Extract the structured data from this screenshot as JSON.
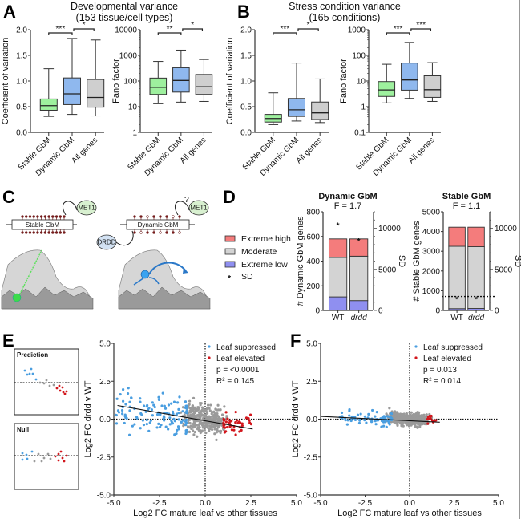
{
  "panels": {
    "A": {
      "letter": "A",
      "title_line1": "Developmental variance",
      "title_line2": "(153 tissue/cell types)"
    },
    "B": {
      "letter": "B",
      "title_line1": "Stress condition variance",
      "title_line2": "(165 conditions)"
    },
    "C": {
      "letter": "C",
      "stable_label": "Stable GbM",
      "dynamic_label": "Dynamic GbM",
      "met1_label": "MET1",
      "drdd_label": "DRDD",
      "question": "?"
    },
    "D": {
      "letter": "D"
    },
    "E": {
      "letter": "E",
      "prediction_label": "Prediction",
      "null_label": "Null"
    },
    "F": {
      "letter": "F"
    }
  },
  "colors": {
    "stable": "#9ef09e",
    "dynamic": "#8fb8ee",
    "all": "#cfcfcf",
    "extreme_high": "#f47c7c",
    "moderate": "#d3d3d3",
    "extreme_low": "#8f8ff0",
    "suppressed": "#4a9ee0",
    "elevated": "#d2161c",
    "other": "#9a9a9a"
  },
  "chart_data": [
    {
      "id": "A-cv",
      "type": "box",
      "ylabel": "Coefficient of variation",
      "yscale": "linear",
      "ylim": [
        0,
        2.0
      ],
      "yticks": [
        "0.0",
        "0.5",
        "1.0",
        "1.5",
        "2.0"
      ],
      "ytick_values": [
        0,
        0.5,
        1.0,
        1.5,
        2.0
      ],
      "categories": [
        "Stable GbM",
        "Dynamic GbM",
        "All genes"
      ],
      "boxes": [
        {
          "min": 0.31,
          "q1": 0.43,
          "median": 0.52,
          "q3": 0.65,
          "max": 1.24
        },
        {
          "min": 0.35,
          "q1": 0.54,
          "median": 0.75,
          "q3": 1.06,
          "max": 1.83
        },
        {
          "min": 0.32,
          "q1": 0.49,
          "median": 0.68,
          "q3": 1.03,
          "max": 1.8
        }
      ],
      "significance": [
        {
          "from": 0,
          "to": 1,
          "label": "***"
        },
        {
          "from": 1,
          "to": 2,
          "label": "*"
        }
      ]
    },
    {
      "id": "A-fano",
      "type": "box",
      "ylabel": "Fano factor",
      "yscale": "log",
      "ylim": [
        1,
        10000
      ],
      "yticks": [
        "1",
        "10",
        "100",
        "1000",
        "10000"
      ],
      "ytick_values": [
        1,
        10,
        100,
        1000,
        10000
      ],
      "categories": [
        "Stable GbM",
        "Dynamic GbM",
        "All genes"
      ],
      "boxes": [
        {
          "min": 13,
          "q1": 30,
          "median": 57,
          "q3": 130,
          "max": 580
        },
        {
          "min": 15,
          "q1": 37,
          "median": 105,
          "q3": 330,
          "max": 1600
        },
        {
          "min": 16,
          "q1": 30,
          "median": 60,
          "q3": 180,
          "max": 690
        }
      ],
      "significance": [
        {
          "from": 0,
          "to": 1,
          "label": "**"
        },
        {
          "from": 1,
          "to": 2,
          "label": "*"
        }
      ]
    },
    {
      "id": "B-cv",
      "type": "box",
      "ylabel": "Coefficient of variation",
      "yscale": "linear",
      "ylim": [
        0,
        2.0
      ],
      "yticks": [
        "0.0",
        "0.5",
        "1.0",
        "1.5",
        "2.0"
      ],
      "ytick_values": [
        0,
        0.5,
        1.0,
        1.5,
        2.0
      ],
      "categories": [
        "Stable GbM",
        "Dynamic GbM",
        "All genes"
      ],
      "boxes": [
        {
          "min": 0.15,
          "q1": 0.2,
          "median": 0.27,
          "q3": 0.35,
          "max": 0.77
        },
        {
          "min": 0.22,
          "q1": 0.31,
          "median": 0.44,
          "q3": 0.66,
          "max": 1.35
        },
        {
          "min": 0.19,
          "q1": 0.25,
          "median": 0.38,
          "q3": 0.59,
          "max": 1.04
        }
      ],
      "significance": [
        {
          "from": 0,
          "to": 1,
          "label": "***"
        },
        {
          "from": 1,
          "to": 2,
          "label": "*"
        }
      ]
    },
    {
      "id": "B-fano",
      "type": "box",
      "ylabel": "Fano factor",
      "yscale": "log",
      "ylim": [
        0.1,
        1000
      ],
      "yticks": [
        "0.1",
        "1",
        "10",
        "100",
        "1000"
      ],
      "ytick_values": [
        0.1,
        1,
        10,
        100,
        1000
      ],
      "categories": [
        "Stable GbM",
        "Dynamic GbM",
        "All genes"
      ],
      "boxes": [
        {
          "min": 1.4,
          "q1": 2.5,
          "median": 4.5,
          "q3": 9.5,
          "max": 45
        },
        {
          "min": 2.1,
          "q1": 4.4,
          "median": 11,
          "q3": 50,
          "max": 320
        },
        {
          "min": 1.6,
          "q1": 2.3,
          "median": 4.6,
          "q3": 16,
          "max": 52
        }
      ],
      "significance": [
        {
          "from": 0,
          "to": 1,
          "label": "***"
        },
        {
          "from": 1,
          "to": 2,
          "label": "***"
        }
      ]
    },
    {
      "id": "D-dynamic",
      "type": "stacked-bar",
      "title": "Dynamic GbM",
      "subtitle": "F = 1.7",
      "ylabel": "# Dynamic GbM genes",
      "y2label": "SD",
      "ylim": [
        0,
        800
      ],
      "yticks": [
        "0",
        "200",
        "400",
        "600",
        "800"
      ],
      "ytick_values": [
        0,
        200,
        400,
        600,
        800
      ],
      "y2lim": [
        0,
        12000
      ],
      "y2ticks": [
        "0",
        "5000",
        "10000"
      ],
      "y2tick_values": [
        0,
        5000,
        10000
      ],
      "categories": [
        "WT",
        "drdd"
      ],
      "series": [
        {
          "name": "Extreme low",
          "values": [
            110,
            80
          ]
        },
        {
          "name": "Moderate",
          "values": [
            320,
            360
          ]
        },
        {
          "name": "Extreme high",
          "values": [
            150,
            140
          ]
        }
      ],
      "sd": [
        10700,
        8800
      ]
    },
    {
      "id": "D-stable",
      "type": "stacked-bar",
      "title": "Stable GbM",
      "subtitle": "F = 1.1",
      "ylabel": "# Stable GbM genes",
      "y2label": "SD",
      "ylim": [
        0,
        5000
      ],
      "yticks": [
        "0",
        "1000",
        "2000",
        "3000",
        "4000",
        "5000"
      ],
      "ytick_values": [
        0,
        1000,
        2000,
        3000,
        4000,
        5000
      ],
      "y2lim": [
        0,
        12000
      ],
      "y2ticks": [
        "0",
        "5000",
        "10000"
      ],
      "y2tick_values": [
        0,
        5000,
        10000
      ],
      "categories": [
        "WT",
        "drdd"
      ],
      "series": [
        {
          "name": "Extreme low",
          "values": [
            90,
            100
          ]
        },
        {
          "name": "Moderate",
          "values": [
            3160,
            3130
          ]
        },
        {
          "name": "Extreme high",
          "values": [
            970,
            990
          ]
        }
      ],
      "sd": [
        1700,
        1700
      ]
    },
    {
      "id": "E-scatter",
      "type": "scatter",
      "xlabel": "Log2 FC mature leaf vs other tissues",
      "ylabel": "Log2  FC drdd v WT",
      "xlim": [
        -5,
        5
      ],
      "ylim": [
        -5,
        5
      ],
      "xticks": [
        "-5.0",
        "-2.5",
        "0.0",
        "2.5",
        "5.0"
      ],
      "xtick_values": [
        -5,
        -2.5,
        0,
        2.5,
        5
      ],
      "yticks": [
        "-5.0",
        "-2.5",
        "0.0",
        "2.5",
        "5.0"
      ],
      "ytick_values": [
        -5,
        -2.5,
        0,
        2.5,
        5
      ],
      "legend": [
        {
          "name": "Leaf suppressed",
          "color_key": "suppressed"
        },
        {
          "name": "Leaf elevated",
          "color_key": "elevated"
        }
      ],
      "stats": {
        "p": "p = <0.0001",
        "r2_prefix": "R",
        "r2_value": " = 0.145"
      },
      "fit": {
        "x": [
          -4.8,
          2.6
        ],
        "y": [
          0.9,
          -0.65
        ]
      },
      "seed": 11,
      "n_suppressed": 130,
      "n_elevated": 45,
      "n_other": 330
    },
    {
      "id": "F-scatter",
      "type": "scatter",
      "xlabel": "Log2 FC mature leaf vs other tissues",
      "ylabel": "Log2  FC drdd v WT",
      "xlim": [
        -5,
        5
      ],
      "ylim": [
        -5,
        5
      ],
      "xticks": [
        "-5.0",
        "-2.5",
        "0.0",
        "2.5",
        "5.0"
      ],
      "xtick_values": [
        -5,
        -2.5,
        0,
        2.5,
        5
      ],
      "yticks": [
        "-5.0",
        "-2.5",
        "0.0",
        "2.5",
        "5.0"
      ],
      "ytick_values": [
        -5,
        -2.5,
        0,
        2.5,
        5
      ],
      "legend": [
        {
          "name": "Leaf suppressed",
          "color_key": "suppressed"
        },
        {
          "name": "Leaf elevated",
          "color_key": "elevated"
        }
      ],
      "stats": {
        "p": "p = 0.013",
        "r2_prefix": "R",
        "r2_value": " = 0.014"
      },
      "fit": {
        "x": [
          -5.0,
          1.7
        ],
        "y": [
          0.18,
          -0.2
        ]
      },
      "seed": 29,
      "n_suppressed": 80,
      "n_elevated": 12,
      "n_other": 500
    }
  ],
  "legend_D": [
    {
      "name": "Extreme high",
      "color_key": "extreme_high"
    },
    {
      "name": "Moderate",
      "color_key": "moderate"
    },
    {
      "name": "Extreme low",
      "color_key": "extreme_low"
    },
    {
      "name": "SD",
      "symbol": "*"
    }
  ]
}
